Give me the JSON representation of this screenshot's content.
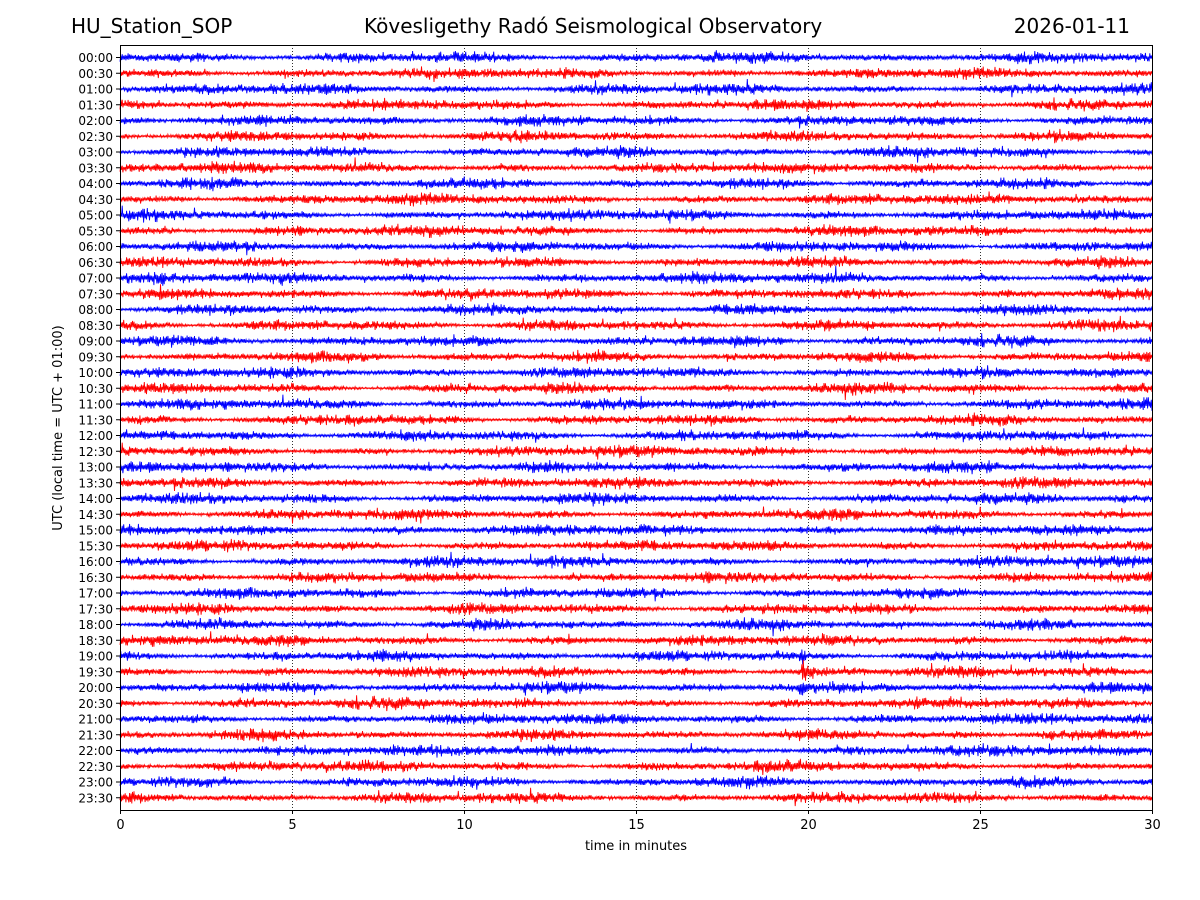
{
  "header": {
    "station": "HU_Station_SOP",
    "observatory": "Kövesligethy Radó Seismological Observatory",
    "date": "2026-01-11"
  },
  "chart_data": {
    "type": "line",
    "subtype": "helicorder",
    "title": "Kövesligethy Radó Seismological Observatory",
    "xlabel": "time in minutes",
    "ylabel": "UTC (local time = UTC + 01:00)",
    "xlim": [
      0,
      30
    ],
    "xticks": [
      0,
      5,
      10,
      15,
      20,
      25,
      30
    ],
    "grid": "vertical dotted at x ticks",
    "row_labels": [
      "00:00",
      "00:30",
      "01:00",
      "01:30",
      "02:00",
      "02:30",
      "03:00",
      "03:30",
      "04:00",
      "04:30",
      "05:00",
      "05:30",
      "06:00",
      "06:30",
      "07:00",
      "07:30",
      "08:00",
      "08:30",
      "09:00",
      "09:30",
      "10:00",
      "10:30",
      "11:00",
      "11:30",
      "12:00",
      "12:30",
      "13:00",
      "13:30",
      "14:00",
      "14:30",
      "15:00",
      "15:30",
      "16:00",
      "16:30",
      "17:00",
      "17:30",
      "18:00",
      "18:30",
      "19:00",
      "19:30",
      "20:00",
      "20:30",
      "21:00",
      "21:30",
      "22:00",
      "22:30",
      "23:00",
      "23:30"
    ],
    "colors": [
      "#0000ff",
      "#ff0000"
    ],
    "event": {
      "row": "19:30",
      "minute": 19.8,
      "description_visible": false
    }
  }
}
